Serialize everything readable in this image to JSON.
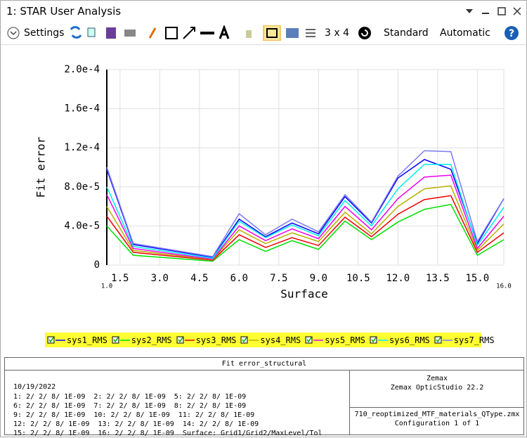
{
  "window": {
    "title": "1: STAR User Analysis"
  },
  "toolbar": {
    "settings": "Settings",
    "layout": "3 x 4",
    "style": "Standard",
    "scale": "Automatic"
  },
  "chart_data": {
    "type": "line",
    "x_label": "Surface",
    "y_label": "Fit error",
    "x": [
      1,
      2,
      5,
      6,
      7,
      8,
      9,
      10,
      11,
      12,
      13,
      14,
      15,
      16
    ],
    "xlim": [
      1,
      16
    ],
    "xticks": [
      {
        "value": 1,
        "label": "1.0"
      },
      1.5,
      {
        "value": 3,
        "label": "3.0"
      },
      4.5,
      {
        "value": 6,
        "label": "6.0"
      },
      7.5,
      {
        "value": 9,
        "label": "9.0"
      },
      10.5,
      {
        "value": 12,
        "label": "12.0"
      },
      13.5,
      {
        "value": 15,
        "label": "15.0"
      },
      {
        "value": 16,
        "label": "16.0"
      }
    ],
    "ylim": [
      0,
      0.0002
    ],
    "yticks": [
      0,
      {
        "value": 4e-05,
        "label": "4.0e-5"
      },
      {
        "value": 8e-05,
        "label": "8.0e-5"
      },
      {
        "value": 0.00012,
        "label": "1.2e-4"
      },
      {
        "value": 0.00016,
        "label": "1.6e-4"
      },
      {
        "value": 0.0002,
        "label": "2.0e-4"
      }
    ],
    "grid": true,
    "legend_background": "#ffff33",
    "series": [
      {
        "name": "sys1_RMS",
        "color": "#0000ff",
        "values": [
          9.8e-05,
          2.1e-05,
          8e-06,
          4.7e-05,
          2.9e-05,
          4.3e-05,
          3.2e-05,
          7e-05,
          4.3e-05,
          8.9e-05,
          0.000108,
          9.8e-05,
          2.2e-05,
          6.8e-05
        ]
      },
      {
        "name": "sys2_RMS",
        "color": "#00e000",
        "values": [
          4e-05,
          1e-05,
          4e-06,
          2.6e-05,
          1.4e-05,
          2.5e-05,
          1.6e-05,
          4.5e-05,
          2.6e-05,
          4.4e-05,
          5.7e-05,
          6.2e-05,
          1e-05,
          2.6e-05
        ]
      },
      {
        "name": "sys3_RMS",
        "color": "#ee0000",
        "values": [
          5e-05,
          1.3e-05,
          5e-06,
          3.1e-05,
          1.8e-05,
          2.8e-05,
          2e-05,
          4.9e-05,
          2.9e-05,
          5.2e-05,
          6.7e-05,
          7.1e-05,
          1.3e-05,
          3.3e-05
        ]
      },
      {
        "name": "sys4_RMS",
        "color": "#b8b000",
        "values": [
          6e-05,
          1.5e-05,
          5.5e-06,
          3.6e-05,
          2.2e-05,
          3.3e-05,
          2.4e-05,
          5.4e-05,
          3.2e-05,
          6e-05,
          7.8e-05,
          8.1e-05,
          1.5e-05,
          4.2e-05
        ]
      },
      {
        "name": "sys5_RMS",
        "color": "#ee00ee",
        "values": [
          7.2e-05,
          1.7e-05,
          6e-06,
          4e-05,
          2.5e-05,
          3.7e-05,
          2.7e-05,
          6e-05,
          3.6e-05,
          6.8e-05,
          9e-05,
          9.2e-05,
          1.7e-05,
          5e-05
        ]
      },
      {
        "name": "sys6_RMS",
        "color": "#00eeee",
        "values": [
          8e-05,
          1.9e-05,
          7e-06,
          4.5e-05,
          2.8e-05,
          4.1e-05,
          3e-05,
          6.6e-05,
          4e-05,
          7.8e-05,
          0.000103,
          0.000103,
          2e-05,
          5.9e-05
        ]
      },
      {
        "name": "sys7_RMS",
        "color": "#7b7bf0",
        "values": [
          0.0001,
          2.2e-05,
          8.6e-06,
          5.25e-05,
          3.1e-05,
          4.7e-05,
          3.4e-05,
          7.2e-05,
          4.4e-05,
          9.1e-05,
          0.000117,
          0.000116,
          2.4e-05,
          6.8e-05
        ]
      }
    ]
  },
  "info": {
    "title": "Fit error_structural",
    "date": "10/19/2022",
    "lines": [
      "1: 2/ 2/ 8/ 1E-09  2: 2/ 2/ 8/ 1E-09  5: 2/ 2/ 8/ 1E-09",
      "6: 2/ 2/ 8/ 1E-09  7: 2/ 2/ 8/ 1E-09  8: 2/ 2/ 8/ 1E-09",
      "9: 2/ 2/ 8/ 1E-09  10: 2/ 2/ 8/ 1E-09  11: 2/ 2/ 8/ 1E-09",
      "12: 2/ 2/ 8/ 1E-09  13: 2/ 2/ 8/ 1E-09  14: 2/ 2/ 8/ 1E-09",
      "15: 2/ 2/ 8/ 1E-09  16: 2/ 2/ 8/ 1E-09  Surface: Grid1/Grid2/MaxLevel/Tol"
    ],
    "company": "Zemax",
    "product": "Zemax OpticStudio 22.2",
    "file": "710_reoptimized_MTF_materials_QType.zmx",
    "config": "Configuration 1 of 1"
  }
}
